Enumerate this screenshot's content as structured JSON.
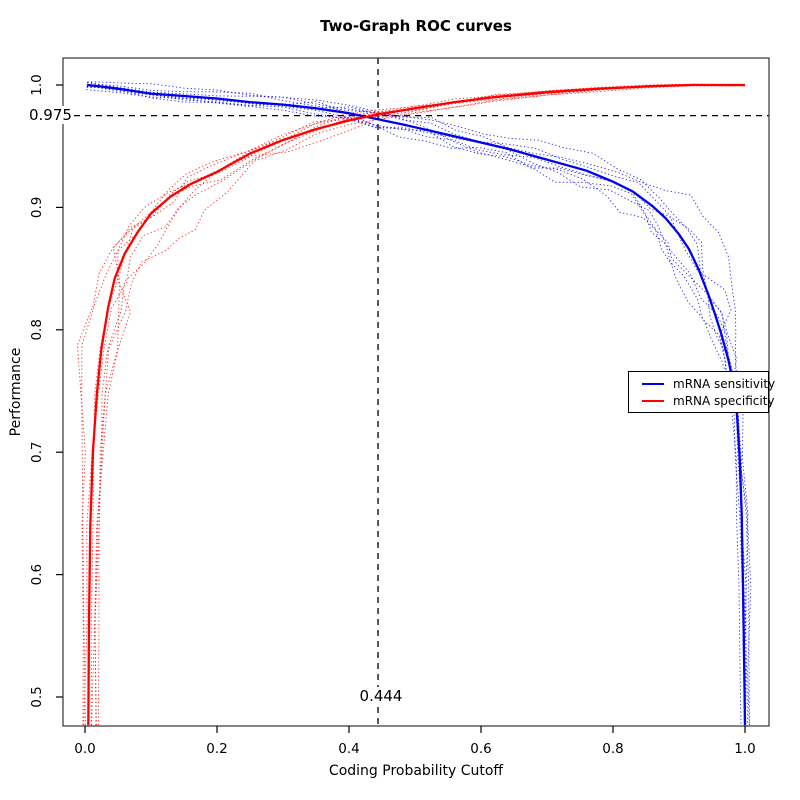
{
  "figure": {
    "background": "#ffffff",
    "box_color": "#333333"
  },
  "chart_data": {
    "type": "line",
    "title": "Two-Graph ROC curves",
    "xlabel": "Coding Probability Cutoff",
    "ylabel": "Performance",
    "xlim": [
      -0.033,
      1.035
    ],
    "ylim": [
      0.477,
      1.022
    ],
    "grid": false,
    "x_ticks": [
      0.0,
      0.2,
      0.4,
      0.6,
      0.8,
      1.0
    ],
    "x_tick_labels": [
      "0.0",
      "0.2",
      "0.4",
      "0.6",
      "0.8",
      "1.0"
    ],
    "y_ticks": [
      0.5,
      0.6,
      0.7,
      0.8,
      0.9,
      1.0
    ],
    "y_tick_labels": [
      "0.5",
      "0.6",
      "0.7",
      "0.8",
      "0.9",
      "1.0"
    ],
    "thresholds": {
      "hline": {
        "y": 0.975,
        "label": "0.975",
        "style": "dashed",
        "color": "#000000"
      },
      "vline": {
        "x": 0.444,
        "label": "0.444",
        "style": "dashed",
        "color": "#000000"
      }
    },
    "legend": {
      "position": "right-middle",
      "entries": [
        {
          "label": "mRNA sensitivity",
          "color": "#0000ee"
        },
        {
          "label": "mRNA specificity",
          "color": "#ff0000"
        }
      ]
    },
    "series": [
      {
        "name": "mRNA sensitivity",
        "color": "#0000ee",
        "style": "solid",
        "ci_style": "dotted",
        "ci_replicates": 8,
        "x": [
          0.003,
          0.02,
          0.05,
          0.1,
          0.15,
          0.2,
          0.25,
          0.3,
          0.35,
          0.4,
          0.444,
          0.48,
          0.52,
          0.56,
          0.6,
          0.64,
          0.68,
          0.72,
          0.76,
          0.8,
          0.83,
          0.86,
          0.88,
          0.9,
          0.915,
          0.93,
          0.945,
          0.955,
          0.965,
          0.975,
          0.982,
          0.988,
          0.992,
          0.995,
          0.997,
          0.999,
          1.0
        ],
        "y": [
          1.0,
          0.999,
          0.997,
          0.993,
          0.991,
          0.989,
          0.986,
          0.984,
          0.981,
          0.977,
          0.972,
          0.968,
          0.963,
          0.958,
          0.953,
          0.948,
          0.942,
          0.936,
          0.93,
          0.921,
          0.913,
          0.901,
          0.891,
          0.878,
          0.866,
          0.849,
          0.828,
          0.812,
          0.795,
          0.775,
          0.757,
          0.73,
          0.695,
          0.65,
          0.59,
          0.52,
          0.477
        ],
        "ci_spread_x": [
          0.0,
          0.1,
          0.3,
          0.5,
          0.7,
          0.85,
          0.93,
          0.97,
          1.0
        ],
        "ci_spread": [
          0.002,
          0.005,
          0.008,
          0.011,
          0.014,
          0.018,
          0.022,
          0.018,
          0.006
        ]
      },
      {
        "name": "mRNA specificity",
        "color": "#ff0000",
        "style": "solid",
        "ci_style": "dotted",
        "ci_replicates": 8,
        "x": [
          0.005,
          0.006,
          0.008,
          0.012,
          0.018,
          0.025,
          0.035,
          0.045,
          0.06,
          0.08,
          0.1,
          0.13,
          0.16,
          0.2,
          0.25,
          0.3,
          0.35,
          0.4,
          0.444,
          0.5,
          0.56,
          0.62,
          0.7,
          0.78,
          0.86,
          0.92,
          1.0
        ],
        "y": [
          0.477,
          0.56,
          0.64,
          0.7,
          0.748,
          0.785,
          0.818,
          0.842,
          0.862,
          0.88,
          0.895,
          0.909,
          0.919,
          0.929,
          0.944,
          0.955,
          0.964,
          0.971,
          0.976,
          0.981,
          0.986,
          0.99,
          0.994,
          0.997,
          0.999,
          1.0,
          1.0
        ],
        "ci_spread_x": [
          0.0,
          0.03,
          0.07,
          0.12,
          0.2,
          0.3,
          0.45,
          0.6,
          0.8,
          1.0
        ],
        "ci_spread": [
          0.004,
          0.02,
          0.024,
          0.02,
          0.016,
          0.012,
          0.007,
          0.004,
          0.002,
          0.001
        ]
      }
    ]
  }
}
